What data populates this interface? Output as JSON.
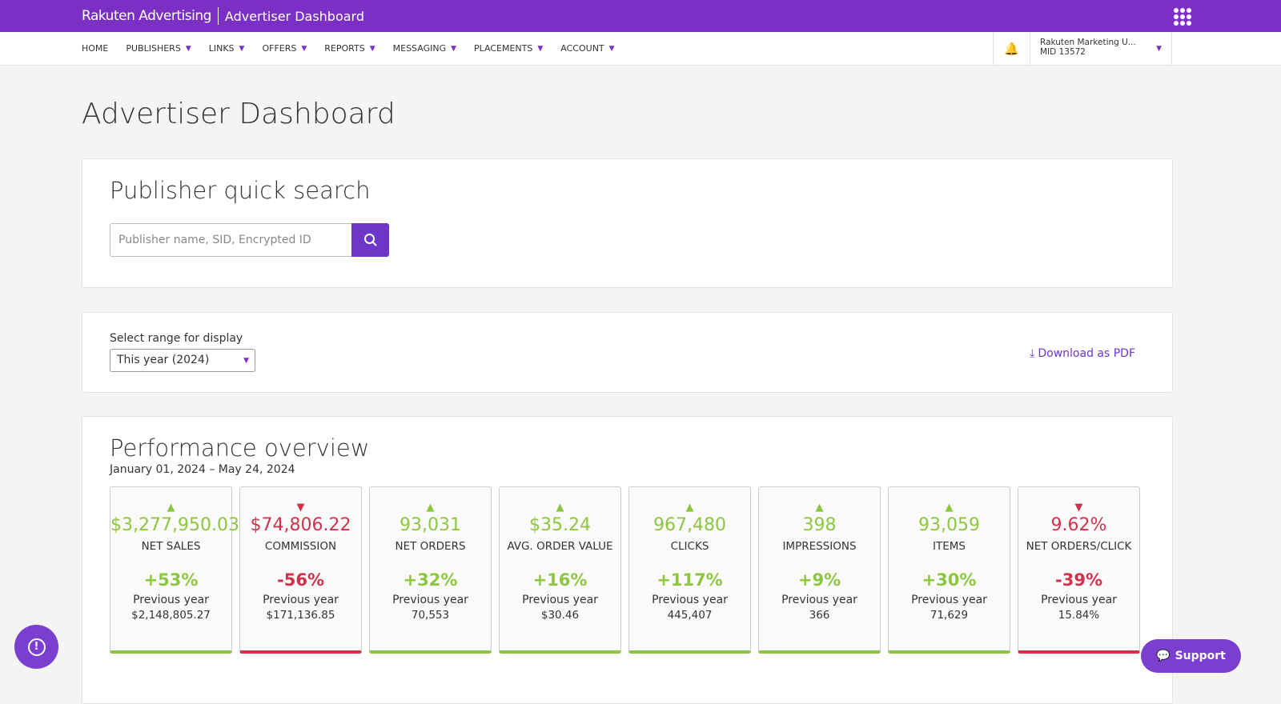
{
  "header": {
    "logo": "Rakuten Advertising",
    "app_title": "Advertiser Dashboard",
    "apps_icon": "grid-icon"
  },
  "nav": {
    "items": [
      {
        "label": "HOME",
        "dropdown": false
      },
      {
        "label": "PUBLISHERS",
        "dropdown": true
      },
      {
        "label": "LINKS",
        "dropdown": true
      },
      {
        "label": "OFFERS",
        "dropdown": true
      },
      {
        "label": "REPORTS",
        "dropdown": true
      },
      {
        "label": "MESSAGING",
        "dropdown": true
      },
      {
        "label": "PLACEMENTS",
        "dropdown": true
      },
      {
        "label": "ACCOUNT",
        "dropdown": true
      }
    ],
    "account": {
      "name": "Rakuten Marketing U...",
      "mid": "MID 13572"
    }
  },
  "page_title": "Advertiser Dashboard",
  "quick_search": {
    "title": "Publisher quick search",
    "placeholder": "Publisher name, SID, Encrypted ID",
    "value": ""
  },
  "range": {
    "label": "Select range for display",
    "selected": "This year (2024)",
    "download": "Download as PDF"
  },
  "performance": {
    "title": "Performance overview",
    "date_range": "January 01, 2024 – May 24, 2024",
    "prev_label": "Previous year",
    "cards": [
      {
        "value": "$3,277,950.03",
        "name": "NET SALES",
        "change": "+53%",
        "prev": "$2,148,805.27",
        "trend": "up"
      },
      {
        "value": "$74,806.22",
        "name": "COMMISSION",
        "change": "-56%",
        "prev": "$171,136.85",
        "trend": "down"
      },
      {
        "value": "93,031",
        "name": "NET ORDERS",
        "change": "+32%",
        "prev": "70,553",
        "trend": "up"
      },
      {
        "value": "$35.24",
        "name": "AVG. ORDER VALUE",
        "change": "+16%",
        "prev": "$30.46",
        "trend": "up"
      },
      {
        "value": "967,480",
        "name": "CLICKS",
        "change": "+117%",
        "prev": "445,407",
        "trend": "up"
      },
      {
        "value": "398",
        "name": "IMPRESSIONS",
        "change": "+9%",
        "prev": "366",
        "trend": "up"
      },
      {
        "value": "93,059",
        "name": "ITEMS",
        "change": "+30%",
        "prev": "71,629",
        "trend": "up"
      },
      {
        "value": "9.62%",
        "name": "NET ORDERS/CLICK",
        "change": "-39%",
        "prev": "15.84%",
        "trend": "down"
      }
    ]
  },
  "support": {
    "label": "Support"
  },
  "colors": {
    "brand": "#7b2fc4",
    "positive": "#8dc63f",
    "negative": "#d0324b"
  }
}
